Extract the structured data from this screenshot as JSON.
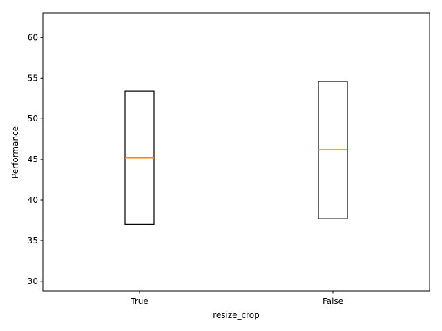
{
  "chart_data": {
    "type": "box",
    "categories": [
      "True",
      "False"
    ],
    "boxes": [
      {
        "category": "True",
        "q1": 37.0,
        "median": 45.2,
        "q3": 53.4
      },
      {
        "category": "False",
        "q1": 37.7,
        "median": 46.2,
        "q3": 54.6
      }
    ],
    "xlabel": "resize_crop",
    "ylabel": "Performance",
    "ylim": [
      28.8,
      63.0
    ],
    "yticks": [
      30,
      35,
      40,
      45,
      50,
      55,
      60
    ],
    "grid": false,
    "colors": {
      "box": "#000000",
      "median": "#ff7f0e"
    }
  }
}
